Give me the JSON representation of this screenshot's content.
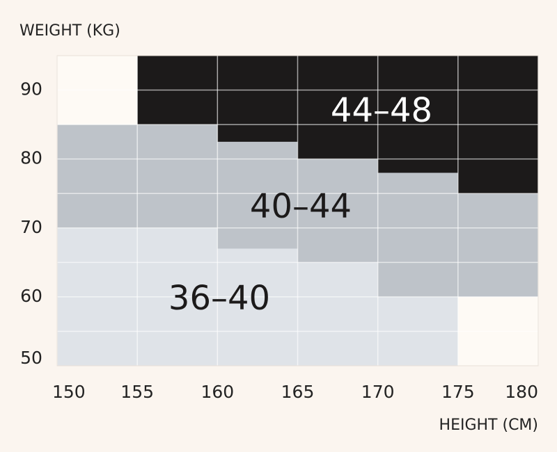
{
  "chart_data": {
    "type": "region",
    "ylabel": "WEIGHT (KG)",
    "xlabel": "HEIGHT (CM)",
    "xlim": [
      150,
      180
    ],
    "ylim": [
      50,
      95
    ],
    "xticks": [
      150,
      155,
      160,
      165,
      170,
      175,
      180
    ],
    "yticks": [
      50,
      60,
      70,
      80,
      90
    ],
    "ygrid": [
      55,
      60,
      65,
      70,
      75,
      80,
      85,
      90
    ],
    "x_bins": [
      150,
      155,
      160,
      165,
      170,
      175,
      180
    ],
    "background_color": "#fefaf5",
    "series": [
      {
        "name": "36–40",
        "color": "#dfe3e8",
        "lower": [
          50,
          50,
          50,
          50,
          50,
          null
        ],
        "upper": [
          70,
          70,
          67,
          65,
          60,
          null
        ]
      },
      {
        "name": "40–44",
        "color": "#bec3c9",
        "lower": [
          70,
          70,
          67,
          65,
          60,
          60
        ],
        "upper": [
          85,
          85,
          82.5,
          80,
          78,
          75
        ]
      },
      {
        "name": "44–48",
        "color": "#1c1a1a",
        "lower": [
          null,
          85,
          82.5,
          80,
          78,
          75
        ],
        "upper": [
          null,
          95,
          95,
          95,
          95,
          95
        ]
      }
    ]
  }
}
